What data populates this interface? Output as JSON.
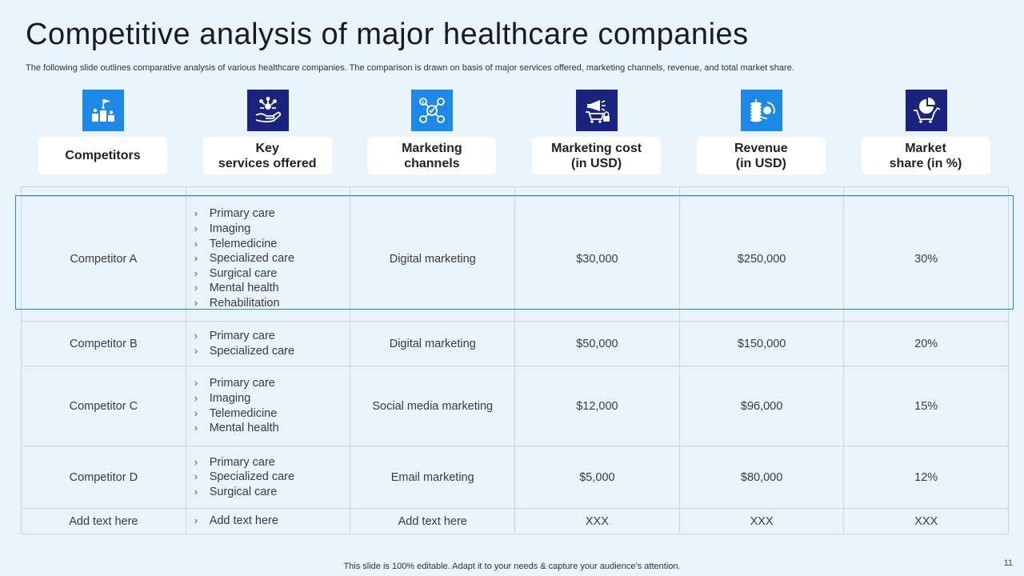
{
  "title": "Competitive analysis of major healthcare companies",
  "subtitle": "The following slide outlines comparative analysis of various healthcare companies. The comparison is drawn on basis of major services offered, marketing channels, revenue, and total market share.",
  "headers": [
    {
      "label": "Competitors",
      "icon": "podium-flag-icon",
      "color": "#1e88e5"
    },
    {
      "label": "Key\nservices offered",
      "icon": "hand-services-icon",
      "color": "#1a237e"
    },
    {
      "label": "Marketing\nchannels",
      "icon": "marketing-network-icon",
      "color": "#1e88e5"
    },
    {
      "label": "Marketing cost\n(in USD)",
      "icon": "megaphone-cart-icon",
      "color": "#1a237e"
    },
    {
      "label": "Revenue\n(in USD)",
      "icon": "coins-cycle-icon",
      "color": "#1e88e5"
    },
    {
      "label": "Market\nshare (in %)",
      "icon": "cart-piechart-icon",
      "color": "#1a237e"
    }
  ],
  "rows": [
    {
      "competitor": "Competitor A",
      "services": [
        "Primary care",
        "Imaging",
        "Telemedicine",
        "Specialized care",
        "Surgical care",
        "Mental health",
        "Rehabilitation"
      ],
      "channel": "Digital marketing",
      "cost": "$30,000",
      "revenue": "$250,000",
      "share": "30%"
    },
    {
      "competitor": "Competitor B",
      "services": [
        "Primary care",
        "Specialized care"
      ],
      "channel": "Digital marketing",
      "cost": "$50,000",
      "revenue": "$150,000",
      "share": "20%"
    },
    {
      "competitor": "Competitor C",
      "services": [
        "Primary care",
        "Imaging",
        "Telemedicine",
        "Mental health"
      ],
      "channel": "Social media marketing",
      "cost": "$12,000",
      "revenue": "$96,000",
      "share": "15%"
    },
    {
      "competitor": "Competitor D",
      "services": [
        "Primary care",
        "Specialized care",
        "Surgical care"
      ],
      "channel": "Email marketing",
      "cost": "$5,000",
      "revenue": "$80,000",
      "share": "12%"
    },
    {
      "competitor": "Add text here",
      "services": [
        "Add text here"
      ],
      "channel": "Add text here",
      "cost": "XXX",
      "revenue": "XXX",
      "share": "XXX"
    }
  ],
  "bullet_glyph": "›",
  "footer": "This slide is 100% editable. Adapt it to your needs & capture your audience’s attention.",
  "page_number": "11"
}
